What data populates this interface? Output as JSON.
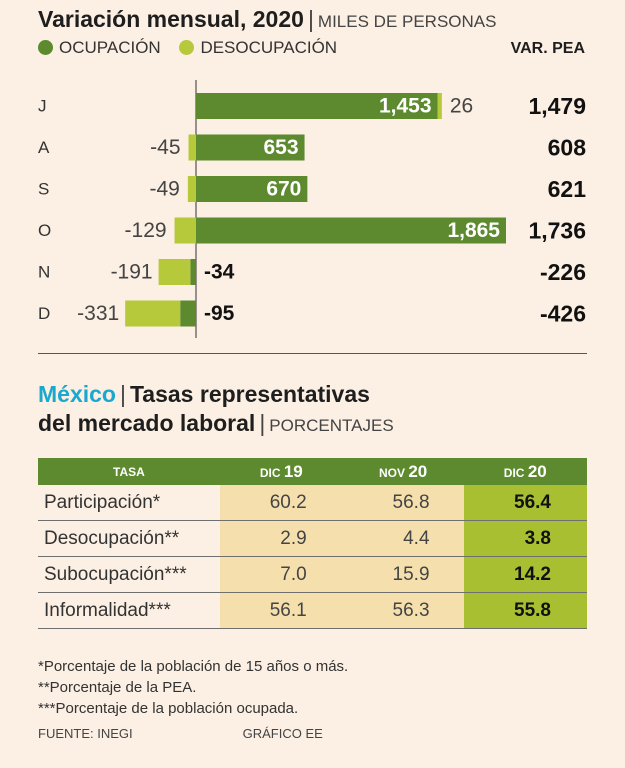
{
  "chart": {
    "title": "Variación mensual, 2020",
    "unit": "MILES DE PERSONAS",
    "separator": "|"
  },
  "legend": {
    "occupation": "OCUPACIÓN",
    "unemployment": "DESOCUPACIÓN",
    "total_header": "VAR. PEA"
  },
  "colors": {
    "background": "#fcefe3",
    "occupation": "#5d8a2f",
    "unemployment": "#b5c93a",
    "accent_blue": "#1ba8cf"
  },
  "chart_data": {
    "type": "bar",
    "orientation": "horizontal",
    "title": "Variación mensual, 2020",
    "unit": "MILES DE PERSONAS",
    "categories": [
      "J",
      "A",
      "S",
      "O",
      "N",
      "D"
    ],
    "series": [
      {
        "name": "OCUPACIÓN",
        "values": [
          1453,
          653,
          670,
          1865,
          -34,
          -95
        ]
      },
      {
        "name": "DESOCUPACIÓN",
        "values": [
          26,
          -45,
          -49,
          -129,
          -191,
          -331
        ]
      }
    ],
    "totals_label": "VAR. PEA",
    "totals": [
      1479,
      608,
      621,
      1736,
      -226,
      -426
    ],
    "display": {
      "occupation": [
        "1,453",
        "653",
        "670",
        "1,865",
        "-34",
        "-95"
      ],
      "unemployment": [
        "26",
        "-45",
        "-49",
        "-129",
        "-191",
        "-331"
      ],
      "totals": [
        "1,479",
        "608",
        "621",
        "1,736",
        "-226",
        "-426"
      ]
    }
  },
  "table": {
    "title_country": "México",
    "title_rest": "Tasas representativas",
    "title_line2": "del mercado laboral",
    "unit": "PORCENTAJES",
    "separator": "|",
    "headers": {
      "tasa": "TASA",
      "c1_month": "DIC",
      "c1_year": "19",
      "c2_month": "NOV",
      "c2_year": "20",
      "c3_month": "DIC",
      "c3_year": "20"
    },
    "rows": [
      {
        "name": "Participación*",
        "dic19": "60.2",
        "nov20": "56.8",
        "dic20": "56.4"
      },
      {
        "name": "Desocupación**",
        "dic19": "2.9",
        "nov20": "4.4",
        "dic20": "3.8"
      },
      {
        "name": "Subocupación***",
        "dic19": "7.0",
        "nov20": "15.9",
        "dic20": "14.2"
      },
      {
        "name": "Informalidad***",
        "dic19": "56.1",
        "nov20": "56.3",
        "dic20": "55.8"
      }
    ]
  },
  "notes": [
    "*Porcentaje de la población de 15 años o más.",
    "**Porcentaje de la PEA.",
    "***Porcentaje de la población ocupada."
  ],
  "footer": {
    "source": "FUENTE: INEGI",
    "credit": "GRÁFICO EE"
  }
}
